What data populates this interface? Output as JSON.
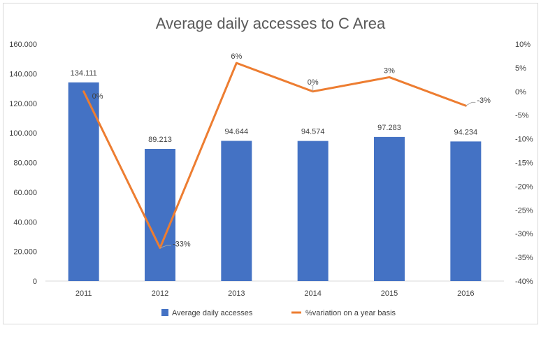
{
  "chart_data": {
    "type": "bar",
    "title": "Average daily accesses to C Area",
    "categories": [
      "2011",
      "2012",
      "2013",
      "2014",
      "2015",
      "2016"
    ],
    "series": [
      {
        "name": "Average daily accesses",
        "kind": "bar",
        "axis": "left",
        "color": "#4472c4",
        "values": [
          134111,
          89213,
          94644,
          94574,
          97283,
          94234
        ],
        "labels": [
          "134.111",
          "89.213",
          "94.644",
          "94.574",
          "97.283",
          "94.234"
        ]
      },
      {
        "name": "%variation on a year basis",
        "kind": "line",
        "axis": "right",
        "color": "#ed7d31",
        "values": [
          0,
          -33,
          6,
          0,
          3,
          -3
        ],
        "labels": [
          "0%",
          "-33%",
          "6%",
          "0%",
          "3%",
          "-3%"
        ]
      }
    ],
    "y_left": {
      "ylim": [
        0,
        160000
      ],
      "ticks": [
        0,
        20000,
        40000,
        60000,
        80000,
        100000,
        120000,
        140000,
        160000
      ],
      "tick_labels": [
        "0",
        "20.000",
        "40.000",
        "60.000",
        "80.000",
        "100.000",
        "120.000",
        "140.000",
        "160.000"
      ]
    },
    "y_right": {
      "ylim": [
        -40,
        10
      ],
      "ticks": [
        10,
        5,
        0,
        -5,
        -10,
        -15,
        -20,
        -25,
        -30,
        -35,
        -40
      ],
      "tick_labels": [
        "10%",
        "5%",
        "0%",
        "-5%",
        "-10%",
        "-15%",
        "-20%",
        "-25%",
        "-30%",
        "-35%",
        "-40%"
      ]
    },
    "legend_position": "bottom",
    "grid": false
  }
}
